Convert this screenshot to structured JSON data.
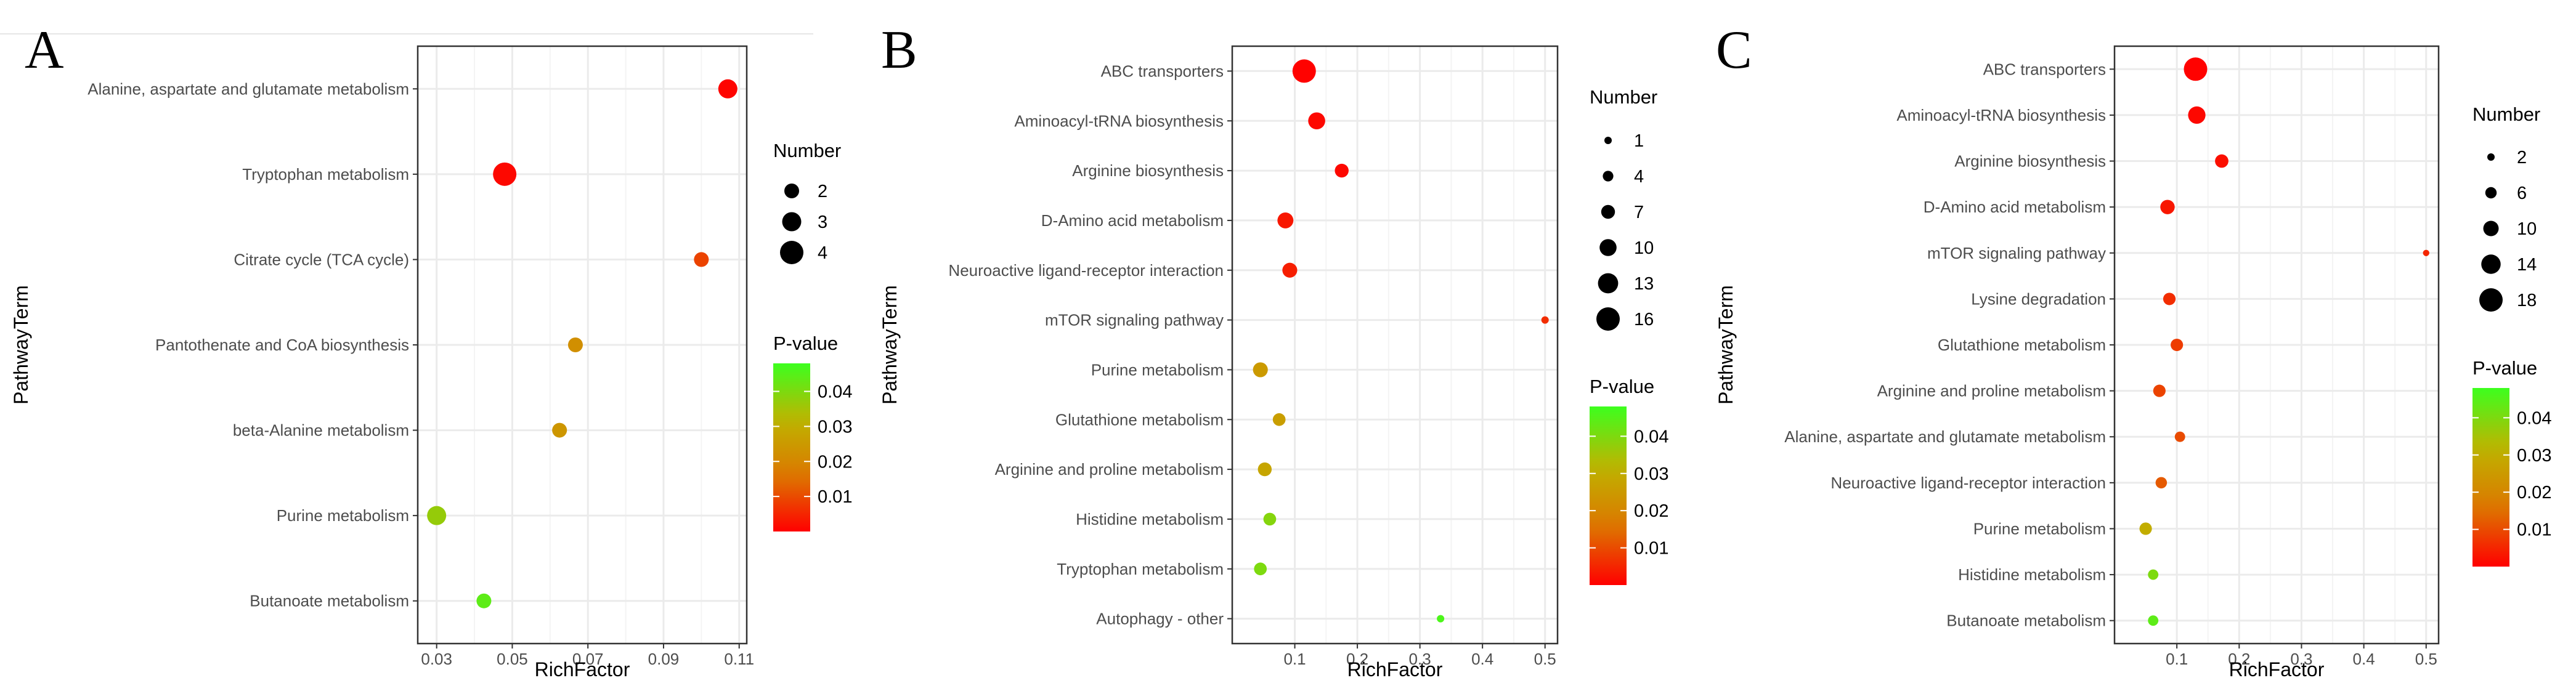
{
  "chart_data": [
    {
      "panel": "A",
      "type": "scatter",
      "xlabel": "RichFactor",
      "ylabel": "PathwayTerm",
      "xlim": [
        0.025,
        0.112
      ],
      "xticks": [
        "0.03",
        "0.05",
        "0.07",
        "0.09",
        "0.11"
      ],
      "size_legend": {
        "title": "Number",
        "values": [
          2,
          3,
          4
        ]
      },
      "color_legend": {
        "title": "P-value",
        "min": 0.0,
        "max": 0.048,
        "ticks": [
          "0.04",
          "0.03",
          "0.02",
          "0.01"
        ]
      },
      "points": [
        {
          "term": "Alanine, aspartate and glutamate metabolism",
          "x": 0.107,
          "number": 3,
          "p": 0.0005
        },
        {
          "term": "Tryptophan metabolism",
          "x": 0.048,
          "number": 4,
          "p": 0.001
        },
        {
          "term": "Citrate cycle (TCA cycle)",
          "x": 0.1,
          "number": 2,
          "p": 0.009
        },
        {
          "term": "Pantothenate and CoA biosynthesis",
          "x": 0.0667,
          "number": 2,
          "p": 0.022
        },
        {
          "term": "beta-Alanine metabolism",
          "x": 0.0625,
          "number": 2,
          "p": 0.024
        },
        {
          "term": "Purine metabolism",
          "x": 0.03,
          "number": 3,
          "p": 0.037
        },
        {
          "term": "Butanoate metabolism",
          "x": 0.0425,
          "number": 2,
          "p": 0.044
        }
      ]
    },
    {
      "panel": "B",
      "type": "scatter",
      "xlabel": "RichFactor",
      "ylabel": "PathwayTerm",
      "xlim": [
        0.0,
        0.52
      ],
      "xticks": [
        "0.1",
        "0.2",
        "0.3",
        "0.4",
        "0.5"
      ],
      "size_legend": {
        "title": "Number",
        "values": [
          1,
          4,
          7,
          10,
          13,
          16
        ]
      },
      "color_legend": {
        "title": "P-value",
        "min": 0.0,
        "max": 0.048,
        "ticks": [
          "0.04",
          "0.03",
          "0.02",
          "0.01"
        ]
      },
      "points": [
        {
          "term": "ABC transporters",
          "x": 0.115,
          "number": 16,
          "p": 0.0002
        },
        {
          "term": "Aminoacyl-tRNA biosynthesis",
          "x": 0.135,
          "number": 10,
          "p": 0.001
        },
        {
          "term": "Arginine biosynthesis",
          "x": 0.175,
          "number": 7,
          "p": 0.001
        },
        {
          "term": "D-Amino acid metabolism",
          "x": 0.085,
          "number": 9,
          "p": 0.003
        },
        {
          "term": "Neuroactive ligand-receptor interaction",
          "x": 0.092,
          "number": 8,
          "p": 0.004
        },
        {
          "term": "mTOR signaling pathway",
          "x": 0.5,
          "number": 1,
          "p": 0.006
        },
        {
          "term": "Purine metabolism",
          "x": 0.045,
          "number": 8,
          "p": 0.025
        },
        {
          "term": "Glutathione metabolism",
          "x": 0.075,
          "number": 6,
          "p": 0.026
        },
        {
          "term": "Arginine and proline metabolism",
          "x": 0.052,
          "number": 7,
          "p": 0.028
        },
        {
          "term": "Histidine metabolism",
          "x": 0.06,
          "number": 6,
          "p": 0.039
        },
        {
          "term": "Tryptophan metabolism",
          "x": 0.045,
          "number": 6,
          "p": 0.04
        },
        {
          "term": "Autophagy - other",
          "x": 0.333,
          "number": 1,
          "p": 0.046
        }
      ]
    },
    {
      "panel": "C",
      "type": "scatter",
      "xlabel": "RichFactor",
      "ylabel": "PathwayTerm",
      "xlim": [
        0.0,
        0.52
      ],
      "xticks": [
        "0.1",
        "0.2",
        "0.3",
        "0.4",
        "0.5"
      ],
      "size_legend": {
        "title": "Number",
        "values": [
          2,
          6,
          10,
          14,
          18
        ]
      },
      "color_legend": {
        "title": "P-value",
        "min": 0.0,
        "max": 0.048,
        "ticks": [
          "0.04",
          "0.03",
          "0.02",
          "0.01"
        ]
      },
      "points": [
        {
          "term": "ABC transporters",
          "x": 0.13,
          "number": 18,
          "p": 0.0002
        },
        {
          "term": "Aminoacyl-tRNA biosynthesis",
          "x": 0.132,
          "number": 12,
          "p": 0.001
        },
        {
          "term": "Arginine biosynthesis",
          "x": 0.172,
          "number": 8,
          "p": 0.002
        },
        {
          "term": "D-Amino acid metabolism",
          "x": 0.085,
          "number": 9,
          "p": 0.003
        },
        {
          "term": "mTOR signaling pathway",
          "x": 0.5,
          "number": 1,
          "p": 0.005
        },
        {
          "term": "Lysine degradation",
          "x": 0.088,
          "number": 7,
          "p": 0.006
        },
        {
          "term": "Glutathione metabolism",
          "x": 0.1,
          "number": 7,
          "p": 0.008
        },
        {
          "term": "Arginine and proline metabolism",
          "x": 0.072,
          "number": 7,
          "p": 0.009
        },
        {
          "term": "Alanine, aspartate and glutamate metabolism",
          "x": 0.105,
          "number": 5,
          "p": 0.01
        },
        {
          "term": "Neuroactive ligand-receptor interaction",
          "x": 0.075,
          "number": 6,
          "p": 0.012
        },
        {
          "term": "Purine metabolism",
          "x": 0.05,
          "number": 7,
          "p": 0.03
        },
        {
          "term": "Histidine metabolism",
          "x": 0.062,
          "number": 5,
          "p": 0.04
        },
        {
          "term": "Butanoate metabolism",
          "x": 0.062,
          "number": 5,
          "p": 0.044
        }
      ]
    }
  ]
}
